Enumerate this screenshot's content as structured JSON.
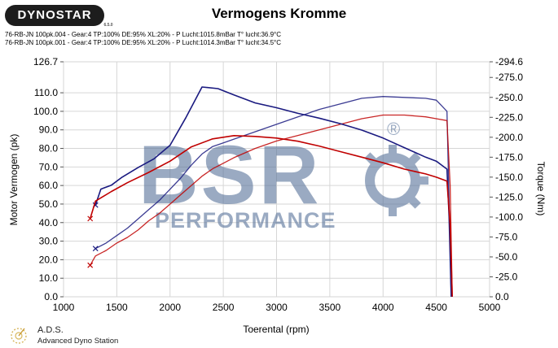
{
  "header": {
    "brand": "DYNOSTAR",
    "brand_sub": "6.5.0",
    "title": "Vermogens Kromme"
  },
  "runs": [
    {
      "label": "76-RB-JN 100pk.004 - Gear:4 TP:100% DE:95% XL:20%   - P Lucht:1015.8mBar T° lucht:36.9°C",
      "color": "#1a1a80"
    },
    {
      "label": "76-RB-JN 100pk.001 - Gear:4 TP:100% DE:95% XL:20%   - P Lucht:1014.3mBar T° lucht:34.5°C",
      "color": "#c00000"
    }
  ],
  "footer": {
    "name": "A.D.S.",
    "desc": "Advanced Dyno Station"
  },
  "watermark": {
    "big": "BSR",
    "small": "PERFORMANCE",
    "reg": "®"
  },
  "chart_data": {
    "type": "line",
    "title": "Vermogens Kromme",
    "xlabel": "Toerental (rpm)",
    "ylabel": "Motor Vermogen (pk)",
    "y2label": "Torque (Nm)",
    "xlim": [
      1000,
      5000
    ],
    "ylim": [
      0,
      126.7
    ],
    "y2lim": [
      0,
      294.6
    ],
    "xticks": [
      1000,
      1500,
      2000,
      2500,
      3000,
      3500,
      4000,
      4500,
      5000
    ],
    "yticks": [
      "0.0",
      "10.0",
      "20.0",
      "30.0",
      "40.0",
      "50.0",
      "60.0",
      "70.0",
      "80.0",
      "90.0",
      "100.0",
      "110.0",
      "126.7"
    ],
    "y2ticks": [
      "0.0",
      "-25.0",
      "-50.0",
      "-75.0",
      "-100.0",
      "-125.0",
      "-150.0",
      "-175.0",
      "-200.0",
      "-225.0",
      "-250.0",
      "-275.0",
      "-294.6"
    ],
    "grid": true,
    "series": [
      {
        "name": "76-RB-JN 100pk.004",
        "metric": "power",
        "axis": "left",
        "color": "#1a1a80",
        "x": [
          1300,
          1400,
          1500,
          1600,
          1700,
          1800,
          1900,
          2000,
          2100,
          2200,
          2300,
          2400,
          2500,
          2600,
          2800,
          3000,
          3200,
          3400,
          3600,
          3800,
          4000,
          4200,
          4400,
          4500,
          4550,
          4600,
          4620,
          4640
        ],
        "y": [
          26,
          29,
          33,
          37,
          42,
          47,
          52,
          58,
          64,
          71,
          77,
          81,
          83,
          85,
          89,
          93,
          97,
          101,
          104,
          107,
          108,
          107.5,
          107,
          106,
          103,
          100,
          50,
          0
        ]
      },
      {
        "name": "76-RB-JN 100pk.001",
        "metric": "power",
        "axis": "left",
        "color": "#c00000",
        "x": [
          1250,
          1300,
          1400,
          1500,
          1600,
          1700,
          1800,
          1900,
          2000,
          2100,
          2200,
          2300,
          2400,
          2500,
          2600,
          2800,
          3000,
          3200,
          3400,
          3600,
          3800,
          4000,
          4200,
          4400,
          4500,
          4600,
          4630,
          4650
        ],
        "y": [
          17,
          22,
          25,
          29,
          32,
          36,
          41,
          45,
          50,
          55,
          60,
          65,
          69,
          72,
          75,
          80,
          84,
          87,
          90,
          93,
          96,
          98,
          98,
          97,
          96,
          95,
          60,
          0
        ]
      },
      {
        "name": "76-RB-JN 100pk.004",
        "metric": "torque",
        "axis": "right",
        "color": "#1a1a80",
        "x": [
          1300,
          1350,
          1450,
          1550,
          1700,
          1850,
          2000,
          2150,
          2300,
          2450,
          2600,
          2800,
          3000,
          3200,
          3400,
          3600,
          3800,
          4000,
          4200,
          4400,
          4500,
          4550,
          4600,
          4620,
          4640
        ],
        "y": [
          115,
          135,
          140,
          150,
          162,
          173,
          190,
          225,
          263,
          261,
          253,
          243,
          237,
          230,
          224,
          217,
          209,
          199,
          187,
          175,
          170,
          165,
          160,
          100,
          0
        ]
      },
      {
        "name": "76-RB-JN 100pk.001",
        "metric": "torque",
        "axis": "right",
        "color": "#c00000",
        "x": [
          1250,
          1300,
          1450,
          1600,
          1800,
          2000,
          2200,
          2400,
          2600,
          2800,
          3000,
          3200,
          3400,
          3600,
          3800,
          4000,
          4200,
          4400,
          4500,
          4600,
          4630,
          4650
        ],
        "y": [
          98,
          120,
          132,
          143,
          156,
          170,
          188,
          198,
          202,
          201,
          199,
          195,
          189,
          182,
          175,
          168,
          160,
          154,
          150,
          145,
          90,
          0
        ]
      }
    ]
  }
}
